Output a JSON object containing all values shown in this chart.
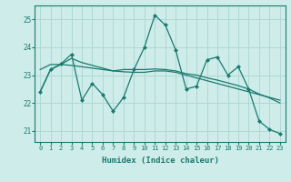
{
  "title": "",
  "xlabel": "Humidex (Indice chaleur)",
  "ylabel": "",
  "bg_color": "#cdecea",
  "grid_color": "#b0d8d4",
  "line_color": "#1a7a6e",
  "x_ticks": [
    0,
    1,
    2,
    3,
    4,
    5,
    6,
    7,
    8,
    9,
    10,
    11,
    12,
    13,
    14,
    15,
    16,
    17,
    18,
    19,
    20,
    21,
    22,
    23
  ],
  "y_ticks": [
    21,
    22,
    23,
    24,
    25
  ],
  "ylim": [
    20.6,
    25.5
  ],
  "xlim": [
    -0.5,
    23.5
  ],
  "series1": [
    22.4,
    23.2,
    23.4,
    23.75,
    22.1,
    22.7,
    22.3,
    21.7,
    22.2,
    23.2,
    24.0,
    25.15,
    24.8,
    23.9,
    22.5,
    22.6,
    23.55,
    23.65,
    23.0,
    23.3,
    22.5,
    21.35,
    21.05,
    20.9
  ],
  "series2": [
    23.2,
    23.38,
    23.38,
    23.35,
    23.3,
    23.25,
    23.2,
    23.15,
    23.12,
    23.1,
    23.1,
    23.15,
    23.15,
    23.1,
    23.0,
    22.9,
    22.8,
    22.7,
    22.6,
    22.5,
    22.4,
    22.3,
    22.2,
    22.1
  ],
  "series3": [
    22.4,
    23.2,
    23.38,
    23.6,
    23.45,
    23.35,
    23.25,
    23.15,
    23.2,
    23.2,
    23.2,
    23.22,
    23.2,
    23.15,
    23.05,
    23.0,
    22.9,
    22.82,
    22.72,
    22.62,
    22.5,
    22.32,
    22.18,
    22.0
  ]
}
